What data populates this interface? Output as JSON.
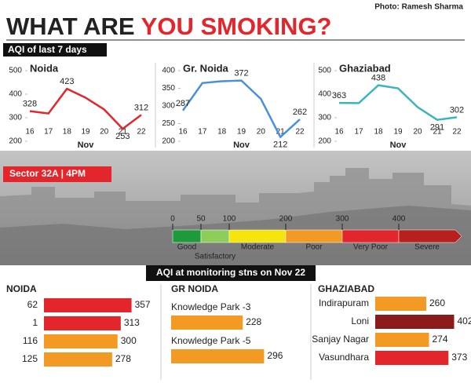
{
  "header": {
    "credit": "Photo: Ramesh Sharma",
    "title_black": "WHAT ARE",
    "title_red": "YOU SMOKING?",
    "subtitle": "AQI of last 7 days",
    "photo_label": "Sector 32A | 4PM",
    "section_title": "AQI at monitoring stns on Nov 22"
  },
  "chart_data": [
    {
      "type": "line",
      "title": "Noida",
      "x_label": "Nov",
      "x": [
        16,
        17,
        18,
        19,
        20,
        21,
        22
      ],
      "values": [
        328,
        318,
        423,
        385,
        335,
        253,
        312
      ],
      "labeled_points": [
        0,
        2,
        5,
        6
      ],
      "color": "#e3262b",
      "xlim": [
        16,
        22
      ],
      "xticks": [
        16,
        17,
        18,
        19,
        20,
        21,
        22
      ],
      "ylim": [
        200,
        500
      ],
      "yticks": [
        200,
        300,
        400,
        500
      ]
    },
    {
      "type": "line",
      "title": "Gr. Noida",
      "x_label": "Nov",
      "x": [
        16,
        17,
        18,
        19,
        20,
        21,
        22
      ],
      "values": [
        287,
        365,
        370,
        372,
        320,
        212,
        262
      ],
      "labeled_points": [
        0,
        3,
        5,
        6
      ],
      "color": "#4a90d6",
      "xlim": [
        16,
        22
      ],
      "xticks": [
        16,
        17,
        18,
        19,
        20,
        21,
        22
      ],
      "ylim": [
        200,
        400
      ],
      "yticks": [
        200,
        250,
        300,
        350,
        400
      ]
    },
    {
      "type": "line",
      "title": "Ghaziabad",
      "x_label": "Nov",
      "x": [
        16,
        17,
        18,
        19,
        20,
        21,
        22
      ],
      "values": [
        363,
        362,
        438,
        425,
        345,
        291,
        302
      ],
      "labeled_points": [
        0,
        2,
        5,
        6
      ],
      "color": "#3ab5c0",
      "xlim": [
        16,
        22
      ],
      "xticks": [
        16,
        17,
        18,
        19,
        20,
        21,
        22
      ],
      "ylim": [
        200,
        500
      ],
      "yticks": [
        200,
        300,
        400,
        500
      ]
    },
    {
      "type": "hbar",
      "title": "NOIDA",
      "categories": [
        "62",
        "1",
        "116",
        "125"
      ],
      "values": [
        357,
        313,
        300,
        278
      ],
      "colors": [
        "#e3262b",
        "#e3262b",
        "#f39a25",
        "#f39a25"
      ],
      "xlim": [
        0,
        400
      ]
    },
    {
      "type": "hbar",
      "title": "GR NOIDA",
      "categories": [
        "Knowledge Park -3",
        "Knowledge Park -5"
      ],
      "values": [
        228,
        296
      ],
      "colors": [
        "#f39a25",
        "#f39a25"
      ],
      "xlim": [
        0,
        400
      ]
    },
    {
      "type": "hbar",
      "title": "GHAZIABAD",
      "categories": [
        "Indirapuram",
        "Loni",
        "Sanjay Nagar",
        "Vasundhara"
      ],
      "values": [
        260,
        402,
        274,
        373
      ],
      "colors": [
        "#f39a25",
        "#8b1a1a",
        "#f39a25",
        "#e3262b"
      ],
      "xlim": [
        0,
        400
      ]
    }
  ],
  "aqi_scale": {
    "ticks": [
      0,
      50,
      100,
      200,
      300,
      400
    ],
    "xlim": [
      0,
      500
    ],
    "categories": [
      "Good",
      "Satisfactory",
      "Moderate",
      "Poor",
      "Very Poor",
      "Severe"
    ],
    "colors": [
      "#1e9a3c",
      "#8fcd5b",
      "#f5e50d",
      "#f39a25",
      "#e3262b",
      "#b81f1f"
    ]
  }
}
